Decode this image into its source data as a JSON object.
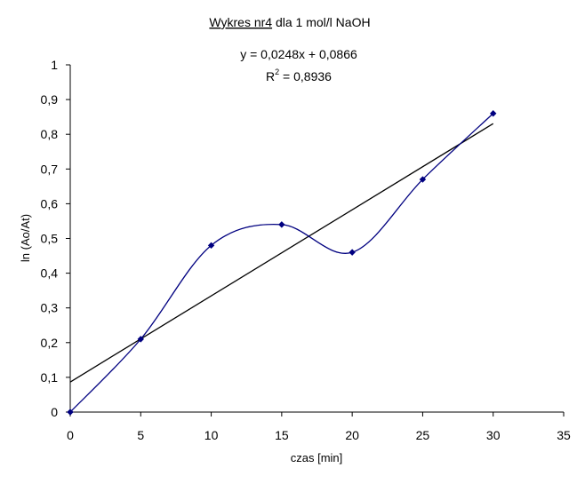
{
  "chart_data": {
    "type": "scatter",
    "title_underlined": "Wykres nr4",
    "title_rest": " dla 1 mol/l NaOH",
    "xlabel": "czas [min]",
    "ylabel": "ln (Ao/At)",
    "xlim": [
      0,
      35
    ],
    "ylim": [
      0,
      1
    ],
    "x_ticks": [
      "0",
      "5",
      "10",
      "15",
      "20",
      "25",
      "30",
      "35"
    ],
    "y_ticks": [
      "0",
      "0,1",
      "0,2",
      "0,3",
      "0,4",
      "0,5",
      "0,6",
      "0,7",
      "0,8",
      "0,9",
      "1"
    ],
    "x_tick_values": [
      0,
      5,
      10,
      15,
      20,
      25,
      30,
      35
    ],
    "y_tick_values": [
      0,
      0.1,
      0.2,
      0.3,
      0.4,
      0.5,
      0.6,
      0.7,
      0.8,
      0.9,
      1
    ],
    "grid": false,
    "legend": "none",
    "series": [
      {
        "color": "#000080",
        "style": "smoothed line with diamond markers",
        "x": [
          0,
          5,
          10,
          15,
          20,
          25,
          30
        ],
        "y": [
          0,
          0.21,
          0.48,
          0.54,
          0.46,
          0.67,
          0.86
        ]
      }
    ],
    "trendline": {
      "type": "linear",
      "color": "#000000",
      "slope": 0.0248,
      "intercept": 0.0866,
      "x_range": [
        0,
        30
      ],
      "equation_label": "y = 0,0248x + 0,0866",
      "r2_prefix": "R",
      "r2_superscript": "2",
      "r2_value": " = 0,8936"
    }
  }
}
